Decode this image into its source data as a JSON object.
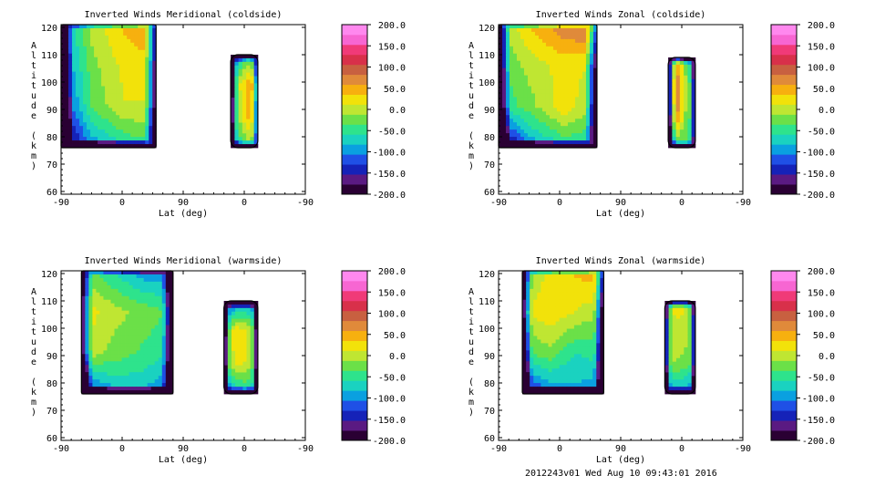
{
  "chart_data": [
    {
      "type": "heatmap",
      "title": "Inverted Winds Meridional (coldside)",
      "xlabel": "Lat (deg)",
      "ylabel": "Altitude (km)",
      "x_ticks": [
        "-90",
        "0",
        "90",
        "0",
        "-90"
      ],
      "y_ticks": [
        "60",
        "70",
        "80",
        "90",
        "100",
        "110",
        "120"
      ],
      "ylim": [
        59,
        121
      ],
      "colorbar_ticks": [
        "200.0",
        "150.0",
        "100.0",
        "50.0",
        "0.0",
        "-50.0",
        "-100.0",
        "-150.0",
        "-200.0"
      ],
      "colorbar_range": [
        -200,
        200
      ],
      "blobs": [
        {
          "x_range": [
            -90,
            50
          ],
          "y_range": [
            76,
            121
          ],
          "values": [
            [
              -200,
              -100,
              -60,
              -40
            ],
            [
              -150,
              -30,
              10,
              10
            ],
            [
              -120,
              -20,
              20,
              30
            ],
            [
              -100,
              0,
              40,
              60
            ]
          ]
        },
        {
          "x_range": [
            20,
            -20
          ],
          "y_range": [
            76,
            110
          ],
          "values": [
            [
              -150,
              -60,
              -20,
              -40
            ],
            [
              -100,
              0,
              40,
              -10
            ],
            [
              -120,
              10,
              60,
              0
            ],
            [
              -160,
              -80,
              -40,
              -80
            ]
          ]
        }
      ]
    },
    {
      "type": "heatmap",
      "title": "Inverted Winds Zonal (coldside)",
      "xlabel": "Lat (deg)",
      "ylabel": "Altitude (km)",
      "x_ticks": [
        "-90",
        "0",
        "90",
        "0",
        "-90"
      ],
      "y_ticks": [
        "60",
        "70",
        "80",
        "90",
        "100",
        "110",
        "120"
      ],
      "ylim": [
        59,
        121
      ],
      "colorbar_ticks": [
        "200.0",
        "150.0",
        "100.0",
        "50.0",
        "0.0",
        "-50.0",
        "-100.0",
        "-150.0",
        "-200.0"
      ],
      "colorbar_range": [
        -200,
        200
      ],
      "blobs": [
        {
          "x_range": [
            -90,
            55
          ],
          "y_range": [
            76,
            121
          ],
          "values": [
            [
              -200,
              -100,
              -60,
              -60
            ],
            [
              -60,
              -20,
              30,
              -20
            ],
            [
              -40,
              0,
              20,
              10
            ],
            [
              -20,
              40,
              80,
              100
            ]
          ]
        },
        {
          "x_range": [
            20,
            -20
          ],
          "y_range": [
            76,
            109
          ],
          "values": [
            [
              -150,
              -60,
              -40,
              -80
            ],
            [
              -100,
              60,
              -20,
              -60
            ],
            [
              -80,
              80,
              -10,
              -70
            ],
            [
              -100,
              40,
              -30,
              -90
            ]
          ]
        }
      ]
    },
    {
      "type": "heatmap",
      "title": "Inverted Winds Meridional (warmside)",
      "xlabel": "Lat (deg)",
      "ylabel": "Altitude (km)",
      "x_ticks": [
        "-90",
        "0",
        "90",
        "0",
        "-90"
      ],
      "y_ticks": [
        "60",
        "70",
        "80",
        "90",
        "100",
        "110",
        "120"
      ],
      "ylim": [
        59,
        121
      ],
      "colorbar_ticks": [
        "200.0",
        "150.0",
        "100.0",
        "50.0",
        "0.0",
        "-50.0",
        "-100.0",
        "-150.0",
        "-200.0"
      ],
      "colorbar_range": [
        -200,
        200
      ],
      "blobs": [
        {
          "x_range": [
            -60,
            75
          ],
          "y_range": [
            76,
            121
          ],
          "values": [
            [
              -150,
              -90,
              -80,
              -120
            ],
            [
              10,
              -20,
              -40,
              -60
            ],
            [
              30,
              0,
              -20,
              -40
            ],
            [
              -20,
              -60,
              -100,
              -100
            ]
          ]
        },
        {
          "x_range": [
            30,
            -20
          ],
          "y_range": [
            76,
            110
          ],
          "values": [
            [
              -150,
              -80,
              -60,
              -100
            ],
            [
              -60,
              20,
              10,
              -60
            ],
            [
              -80,
              40,
              20,
              -60
            ],
            [
              -160,
              -120,
              -100,
              -140
            ]
          ]
        }
      ]
    },
    {
      "type": "heatmap",
      "title": "Inverted Winds Zonal (warmside)",
      "xlabel": "Lat (deg)",
      "ylabel": "Altitude (km)",
      "x_ticks": [
        "-90",
        "0",
        "90",
        "0",
        "-90"
      ],
      "y_ticks": [
        "60",
        "70",
        "80",
        "90",
        "100",
        "110",
        "120"
      ],
      "ylim": [
        59,
        121
      ],
      "colorbar_ticks": [
        "200.0",
        "150.0",
        "100.0",
        "50.0",
        "0.0",
        "-50.0",
        "-100.0",
        "-150.0",
        "-200.0"
      ],
      "colorbar_range": [
        -200,
        200
      ],
      "blobs": [
        {
          "x_range": [
            -55,
            65
          ],
          "y_range": [
            76,
            121
          ],
          "values": [
            [
              -150,
              -110,
              -90,
              -110
            ],
            [
              -40,
              -20,
              -60,
              -40
            ],
            [
              10,
              30,
              10,
              -10
            ],
            [
              -30,
              20,
              40,
              60
            ]
          ]
        },
        {
          "x_range": [
            25,
            -20
          ],
          "y_range": [
            76,
            110
          ],
          "values": [
            [
              -140,
              -100,
              -100,
              -120
            ],
            [
              -50,
              -10,
              -20,
              -50
            ],
            [
              -30,
              0,
              0,
              -40
            ],
            [
              -100,
              30,
              20,
              -80
            ]
          ]
        }
      ]
    }
  ],
  "footer": "2012243v01 Wed Aug 10 09:43:01 2016",
  "colors": {
    "colormap": [
      "#2a0033",
      "#5a1a82",
      "#1522b8",
      "#1f50e6",
      "#0aa0e0",
      "#1ad2c0",
      "#2ee38c",
      "#6be048",
      "#bfe632",
      "#f2e20a",
      "#f7b00f",
      "#e08a3a",
      "#c86040",
      "#d8304a",
      "#f03a78",
      "#f766d2",
      "#ff88ee"
    ]
  }
}
